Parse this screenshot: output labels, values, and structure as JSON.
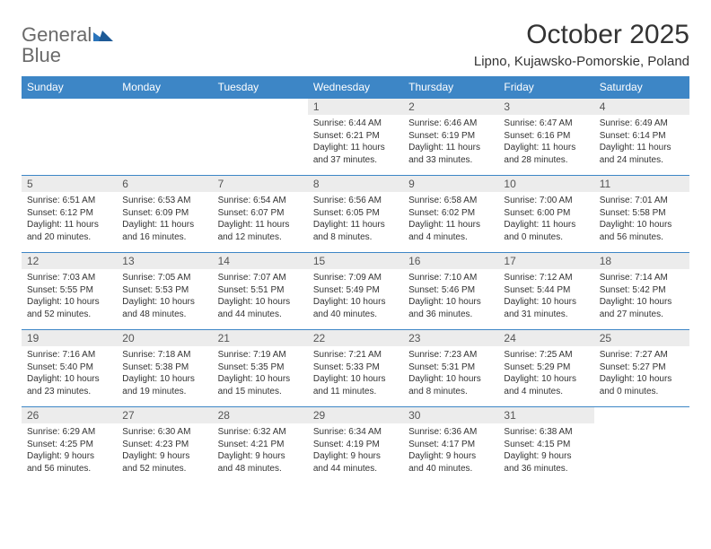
{
  "brand": {
    "name_part1": "General",
    "name_part2": "Blue",
    "text_color": "#6a6a6a",
    "accent_color": "#2a74bb"
  },
  "title": "October 2025",
  "location": "Lipno, Kujawsko-Pomorskie, Poland",
  "colors": {
    "header_bg": "#3d86c6",
    "header_text": "#ffffff",
    "daynum_bg": "#ececec",
    "row_border": "#3d86c6",
    "body_text": "#333333"
  },
  "typography": {
    "title_fontsize": 30,
    "location_fontsize": 15,
    "weekday_fontsize": 12,
    "daynum_fontsize": 12,
    "body_fontsize": 10
  },
  "weekdays": [
    "Sunday",
    "Monday",
    "Tuesday",
    "Wednesday",
    "Thursday",
    "Friday",
    "Saturday"
  ],
  "weeks": [
    [
      {
        "day": "",
        "sunrise": "",
        "sunset": "",
        "daylight": ""
      },
      {
        "day": "",
        "sunrise": "",
        "sunset": "",
        "daylight": ""
      },
      {
        "day": "",
        "sunrise": "",
        "sunset": "",
        "daylight": ""
      },
      {
        "day": "1",
        "sunrise": "Sunrise: 6:44 AM",
        "sunset": "Sunset: 6:21 PM",
        "daylight": "Daylight: 11 hours and 37 minutes."
      },
      {
        "day": "2",
        "sunrise": "Sunrise: 6:46 AM",
        "sunset": "Sunset: 6:19 PM",
        "daylight": "Daylight: 11 hours and 33 minutes."
      },
      {
        "day": "3",
        "sunrise": "Sunrise: 6:47 AM",
        "sunset": "Sunset: 6:16 PM",
        "daylight": "Daylight: 11 hours and 28 minutes."
      },
      {
        "day": "4",
        "sunrise": "Sunrise: 6:49 AM",
        "sunset": "Sunset: 6:14 PM",
        "daylight": "Daylight: 11 hours and 24 minutes."
      }
    ],
    [
      {
        "day": "5",
        "sunrise": "Sunrise: 6:51 AM",
        "sunset": "Sunset: 6:12 PM",
        "daylight": "Daylight: 11 hours and 20 minutes."
      },
      {
        "day": "6",
        "sunrise": "Sunrise: 6:53 AM",
        "sunset": "Sunset: 6:09 PM",
        "daylight": "Daylight: 11 hours and 16 minutes."
      },
      {
        "day": "7",
        "sunrise": "Sunrise: 6:54 AM",
        "sunset": "Sunset: 6:07 PM",
        "daylight": "Daylight: 11 hours and 12 minutes."
      },
      {
        "day": "8",
        "sunrise": "Sunrise: 6:56 AM",
        "sunset": "Sunset: 6:05 PM",
        "daylight": "Daylight: 11 hours and 8 minutes."
      },
      {
        "day": "9",
        "sunrise": "Sunrise: 6:58 AM",
        "sunset": "Sunset: 6:02 PM",
        "daylight": "Daylight: 11 hours and 4 minutes."
      },
      {
        "day": "10",
        "sunrise": "Sunrise: 7:00 AM",
        "sunset": "Sunset: 6:00 PM",
        "daylight": "Daylight: 11 hours and 0 minutes."
      },
      {
        "day": "11",
        "sunrise": "Sunrise: 7:01 AM",
        "sunset": "Sunset: 5:58 PM",
        "daylight": "Daylight: 10 hours and 56 minutes."
      }
    ],
    [
      {
        "day": "12",
        "sunrise": "Sunrise: 7:03 AM",
        "sunset": "Sunset: 5:55 PM",
        "daylight": "Daylight: 10 hours and 52 minutes."
      },
      {
        "day": "13",
        "sunrise": "Sunrise: 7:05 AM",
        "sunset": "Sunset: 5:53 PM",
        "daylight": "Daylight: 10 hours and 48 minutes."
      },
      {
        "day": "14",
        "sunrise": "Sunrise: 7:07 AM",
        "sunset": "Sunset: 5:51 PM",
        "daylight": "Daylight: 10 hours and 44 minutes."
      },
      {
        "day": "15",
        "sunrise": "Sunrise: 7:09 AM",
        "sunset": "Sunset: 5:49 PM",
        "daylight": "Daylight: 10 hours and 40 minutes."
      },
      {
        "day": "16",
        "sunrise": "Sunrise: 7:10 AM",
        "sunset": "Sunset: 5:46 PM",
        "daylight": "Daylight: 10 hours and 36 minutes."
      },
      {
        "day": "17",
        "sunrise": "Sunrise: 7:12 AM",
        "sunset": "Sunset: 5:44 PM",
        "daylight": "Daylight: 10 hours and 31 minutes."
      },
      {
        "day": "18",
        "sunrise": "Sunrise: 7:14 AM",
        "sunset": "Sunset: 5:42 PM",
        "daylight": "Daylight: 10 hours and 27 minutes."
      }
    ],
    [
      {
        "day": "19",
        "sunrise": "Sunrise: 7:16 AM",
        "sunset": "Sunset: 5:40 PM",
        "daylight": "Daylight: 10 hours and 23 minutes."
      },
      {
        "day": "20",
        "sunrise": "Sunrise: 7:18 AM",
        "sunset": "Sunset: 5:38 PM",
        "daylight": "Daylight: 10 hours and 19 minutes."
      },
      {
        "day": "21",
        "sunrise": "Sunrise: 7:19 AM",
        "sunset": "Sunset: 5:35 PM",
        "daylight": "Daylight: 10 hours and 15 minutes."
      },
      {
        "day": "22",
        "sunrise": "Sunrise: 7:21 AM",
        "sunset": "Sunset: 5:33 PM",
        "daylight": "Daylight: 10 hours and 11 minutes."
      },
      {
        "day": "23",
        "sunrise": "Sunrise: 7:23 AM",
        "sunset": "Sunset: 5:31 PM",
        "daylight": "Daylight: 10 hours and 8 minutes."
      },
      {
        "day": "24",
        "sunrise": "Sunrise: 7:25 AM",
        "sunset": "Sunset: 5:29 PM",
        "daylight": "Daylight: 10 hours and 4 minutes."
      },
      {
        "day": "25",
        "sunrise": "Sunrise: 7:27 AM",
        "sunset": "Sunset: 5:27 PM",
        "daylight": "Daylight: 10 hours and 0 minutes."
      }
    ],
    [
      {
        "day": "26",
        "sunrise": "Sunrise: 6:29 AM",
        "sunset": "Sunset: 4:25 PM",
        "daylight": "Daylight: 9 hours and 56 minutes."
      },
      {
        "day": "27",
        "sunrise": "Sunrise: 6:30 AM",
        "sunset": "Sunset: 4:23 PM",
        "daylight": "Daylight: 9 hours and 52 minutes."
      },
      {
        "day": "28",
        "sunrise": "Sunrise: 6:32 AM",
        "sunset": "Sunset: 4:21 PM",
        "daylight": "Daylight: 9 hours and 48 minutes."
      },
      {
        "day": "29",
        "sunrise": "Sunrise: 6:34 AM",
        "sunset": "Sunset: 4:19 PM",
        "daylight": "Daylight: 9 hours and 44 minutes."
      },
      {
        "day": "30",
        "sunrise": "Sunrise: 6:36 AM",
        "sunset": "Sunset: 4:17 PM",
        "daylight": "Daylight: 9 hours and 40 minutes."
      },
      {
        "day": "31",
        "sunrise": "Sunrise: 6:38 AM",
        "sunset": "Sunset: 4:15 PM",
        "daylight": "Daylight: 9 hours and 36 minutes."
      },
      {
        "day": "",
        "sunrise": "",
        "sunset": "",
        "daylight": ""
      }
    ]
  ]
}
